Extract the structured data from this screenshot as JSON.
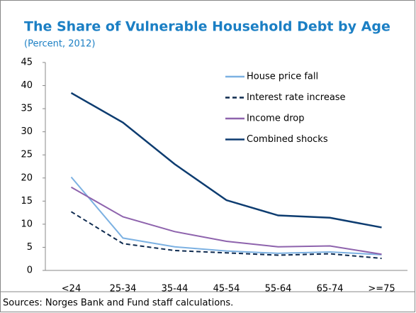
{
  "chart_data": {
    "type": "line",
    "title": "The Share of Vulnerable Household Debt by Age",
    "subtitle": "(Percent, 2012)",
    "source": "Sources: Norges Bank and Fund staff calculations.",
    "categories": [
      "<24",
      "25-34",
      "35-44",
      "45-54",
      "55-64",
      "65-74",
      ">=75"
    ],
    "series": [
      {
        "name": "House price fall",
        "color": "#7cb1e2",
        "line_style": "solid",
        "values": [
          20.2,
          7.0,
          5.1,
          4.2,
          3.7,
          4.0,
          3.4
        ]
      },
      {
        "name": "Interest rate increase",
        "color": "#0e2a4f",
        "line_style": "dashed",
        "values": [
          12.7,
          5.8,
          4.3,
          3.8,
          3.3,
          3.6,
          2.6
        ]
      },
      {
        "name": "Income drop",
        "color": "#8e63ad",
        "line_style": "solid",
        "values": [
          18.0,
          11.6,
          8.4,
          6.3,
          5.1,
          5.3,
          3.5
        ]
      },
      {
        "name": "Combined shocks",
        "color": "#0d3c70",
        "line_style": "solid",
        "values": [
          38.4,
          32.0,
          23.0,
          15.2,
          11.9,
          11.4,
          9.3
        ]
      }
    ],
    "ylim": [
      0,
      45
    ],
    "yticks": [
      0,
      5,
      10,
      15,
      20,
      25,
      30,
      35,
      40,
      45
    ],
    "grid": false,
    "legend": "upper-right"
  }
}
